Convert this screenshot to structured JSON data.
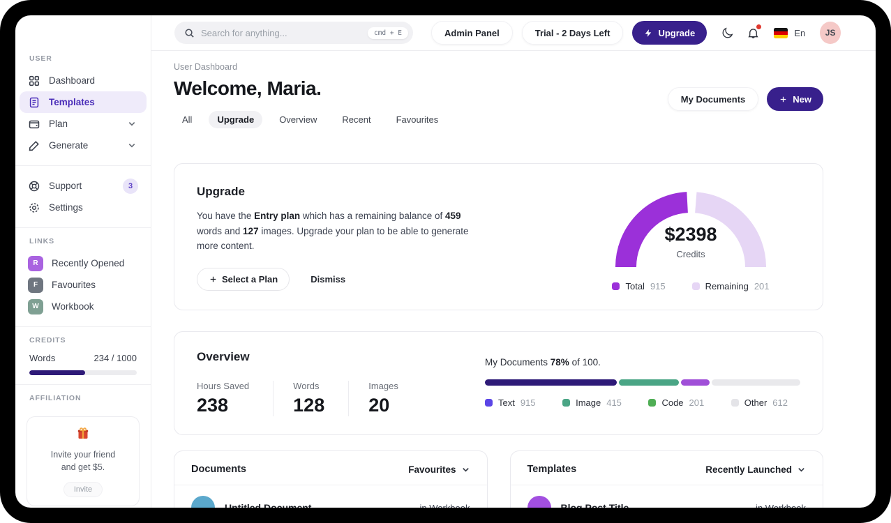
{
  "sidebar": {
    "user_label": "USER",
    "items": [
      {
        "label": "Dashboard"
      },
      {
        "label": "Templates"
      },
      {
        "label": "Plan",
        "expandable": true
      },
      {
        "label": "Generate",
        "expandable": true
      }
    ],
    "support": {
      "label": "Support",
      "badge": "3"
    },
    "settings": {
      "label": "Settings"
    },
    "links_label": "LINKS",
    "links": [
      {
        "initial": "R",
        "label": "Recently Opened",
        "color": "#a963e0"
      },
      {
        "initial": "F",
        "label": "Favourites",
        "color": "#6f7680"
      },
      {
        "initial": "W",
        "label": "Workbook",
        "color": "#7fa093"
      }
    ],
    "credits_label": "CREDITS",
    "credits": {
      "label": "Words",
      "value": "234 / 1000",
      "visual_percent": 52
    },
    "affiliation_label": "AFFILIATION",
    "affiliation": {
      "line1": "Invite your friend",
      "line2": "and get $5.",
      "button": "Invite"
    }
  },
  "topbar": {
    "search_placeholder": "Search for anything...",
    "shortcut": "cmd + E",
    "admin_panel": "Admin Panel",
    "trial": "Trial - 2 Days Left",
    "upgrade": "Upgrade",
    "language": "En",
    "avatar_initials": "JS"
  },
  "header": {
    "breadcrumb": "User Dashboard",
    "title": "Welcome, Maria.",
    "tabs": [
      "All",
      "Upgrade",
      "Overview",
      "Recent",
      "Favourites"
    ],
    "active_tab": "Upgrade",
    "my_documents": "My Documents",
    "new": "New"
  },
  "upgrade_card": {
    "title": "Upgrade",
    "body": {
      "t1": "You have the ",
      "b1": "Entry plan",
      "t2": " which has a remaining balance of ",
      "b2": "459",
      "t3": " words and ",
      "b3": "127",
      "t4": " images. Upgrade your plan to be able to generate more content."
    },
    "select_plan": "Select a Plan",
    "dismiss": "Dismiss"
  },
  "chart_data": [
    {
      "type": "donut-gauge",
      "center_value": "$2398",
      "center_label": "Credits",
      "layout": "half-donut, split near top with small gap, legend below",
      "series": [
        {
          "name": "Total",
          "value": 915,
          "color": "#9b30d9"
        },
        {
          "name": "Remaining",
          "value": 201,
          "color": "#e6d6f5"
        }
      ]
    },
    {
      "type": "stacked-bar",
      "title_prefix": "My Documents ",
      "title_bold": "78%",
      "title_suffix": " of 100.",
      "layout": "horizontal stacked bar, segment widths proportional to values, legend row below",
      "series": [
        {
          "name": "Text",
          "value": 915,
          "bar_color": "#2e1a78",
          "legend_color": "#5b45e6"
        },
        {
          "name": "Image",
          "value": 415,
          "bar_color": "#4aa585",
          "legend_color": "#4aa585"
        },
        {
          "name": "Code",
          "value": 201,
          "bar_color": "#a04fd8",
          "legend_color": "#4fae55"
        },
        {
          "name": "Other",
          "value": 612,
          "bar_color": "#e9e9ec",
          "legend_color": "#e4e4e8"
        }
      ]
    }
  ],
  "overview_card": {
    "title": "Overview",
    "stats": [
      {
        "label": "Hours Saved",
        "value": "238"
      },
      {
        "label": "Words",
        "value": "128"
      },
      {
        "label": "Images",
        "value": "20"
      }
    ]
  },
  "documents_card": {
    "title": "Documents",
    "filter": "Favourites",
    "row": {
      "title": "Untitled Document",
      "location": "in Workbook",
      "avatar_color": "#5ba8cc"
    }
  },
  "templates_card": {
    "title": "Templates",
    "filter": "Recently Launched",
    "row": {
      "title": "Blog Post Title",
      "location": "in Workbook",
      "avatar_color": "#a24fe0"
    }
  }
}
